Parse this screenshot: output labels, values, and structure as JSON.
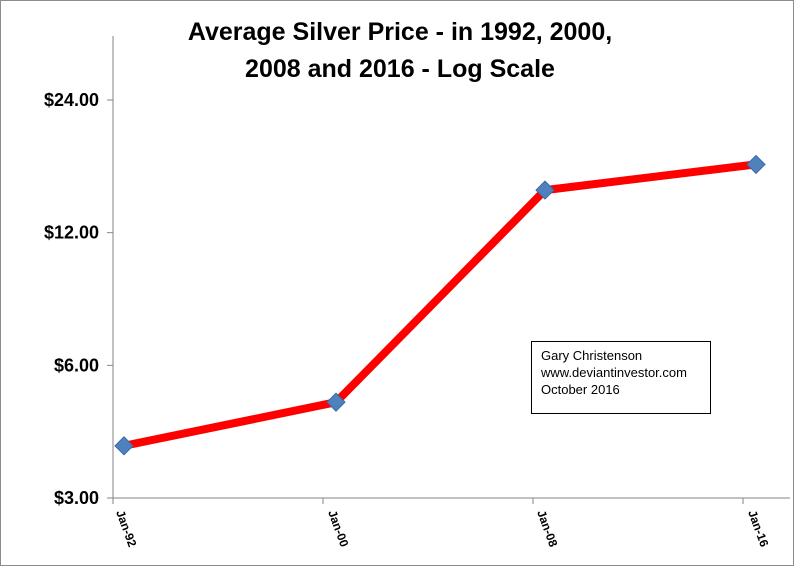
{
  "chart_data": {
    "type": "line",
    "title_lines": [
      "Average Silver Price - in 1992, 2000,",
      "2008 and 2016 -  Log Scale"
    ],
    "x": [
      "Jan-92",
      "Jan-00",
      "Jan-08",
      "Jan-16"
    ],
    "series": [
      {
        "values": [
          3.94,
          4.95,
          14.99,
          17.14
        ]
      }
    ],
    "yscale": "log",
    "yticks": [
      3,
      6,
      12,
      24
    ],
    "ytick_labels": [
      "$3.00",
      "$6.00",
      "$12.00",
      "$24.00"
    ],
    "ylim": [
      3,
      24
    ],
    "grid": false,
    "line_color": "#ff0000",
    "marker_color": "#4f81bd",
    "marker": "diamond",
    "annotation_lines": [
      "Gary Christenson",
      "www.deviantinvestor.com",
      "October 2016"
    ]
  }
}
